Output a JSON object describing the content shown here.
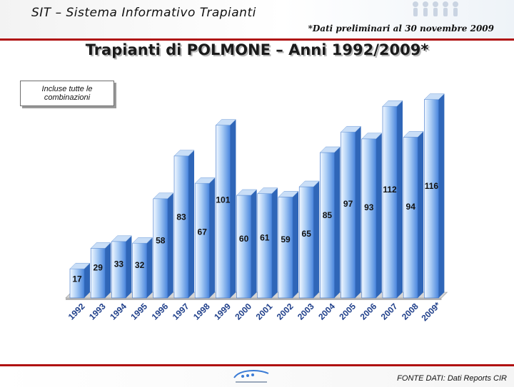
{
  "header": {
    "app_title": "SIT – Sistema Informativo Trapianti",
    "preliminary_note": "*Dati preliminari al 30 novembre 2009"
  },
  "note_box": {
    "text": "Incluse tutte le combinazioni"
  },
  "footer": {
    "source": "FONTE DATI: Dati Reports CIR"
  },
  "colors": {
    "accent": "#b01010",
    "bar_light": "#eaf3ff",
    "bar_dark": "#4f8fe6",
    "bar_top": "#cfe3fb"
  },
  "chart_data": {
    "type": "bar",
    "title": "Trapianti di POLMONE – Anni 1992/2009*",
    "categories": [
      "1992",
      "1993",
      "1994",
      "1995",
      "1996",
      "1997",
      "1998",
      "1999",
      "2000",
      "2001",
      "2002",
      "2003",
      "2004",
      "2005",
      "2006",
      "2007",
      "2008",
      "2009*"
    ],
    "values": [
      17,
      29,
      33,
      32,
      58,
      83,
      67,
      101,
      60,
      61,
      59,
      65,
      85,
      97,
      93,
      112,
      94,
      116
    ],
    "ylim": [
      0,
      120
    ],
    "grid": false,
    "legend": "none"
  }
}
